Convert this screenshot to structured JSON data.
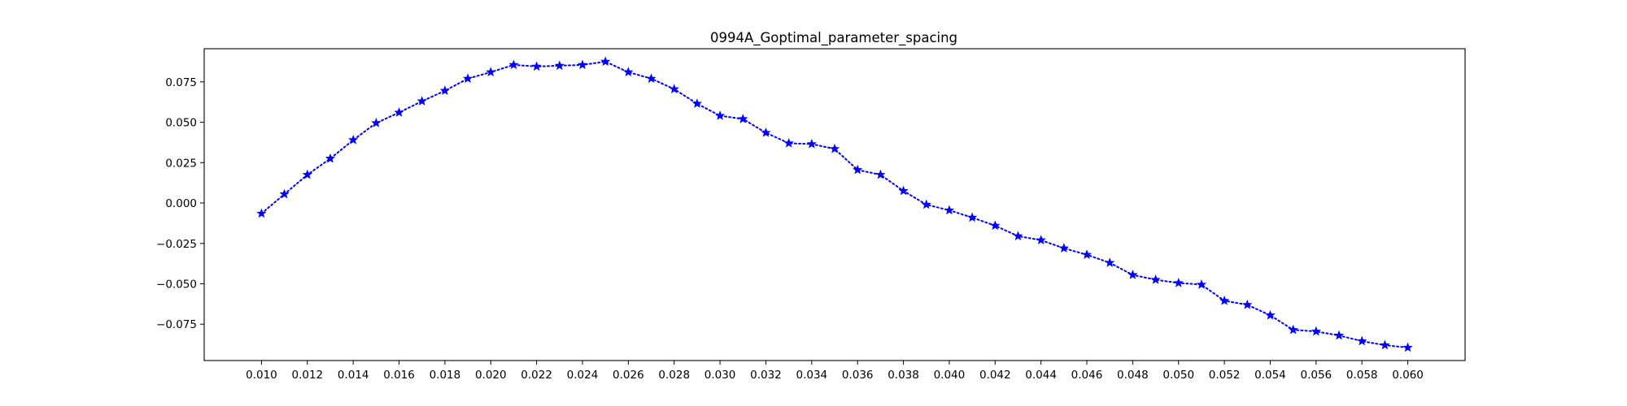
{
  "chart_data": {
    "type": "line",
    "title": "0994A_Goptimal_parameter_spacing",
    "xlabel": "",
    "ylabel": "",
    "xlim": [
      0.0075,
      0.0625
    ],
    "ylim": [
      -0.0975,
      0.0955
    ],
    "x_ticks": [
      0.01,
      0.012,
      0.014,
      0.016,
      0.018,
      0.02,
      0.022,
      0.024,
      0.026,
      0.028,
      0.03,
      0.032,
      0.034,
      0.036,
      0.038,
      0.04,
      0.042,
      0.044,
      0.046,
      0.048,
      0.05,
      0.052,
      0.054,
      0.056,
      0.058,
      0.06
    ],
    "x_tick_labels": [
      "0.010",
      "0.012",
      "0.014",
      "0.016",
      "0.018",
      "0.020",
      "0.022",
      "0.024",
      "0.026",
      "0.028",
      "0.030",
      "0.032",
      "0.034",
      "0.036",
      "0.038",
      "0.040",
      "0.042",
      "0.044",
      "0.046",
      "0.048",
      "0.050",
      "0.052",
      "0.054",
      "0.056",
      "0.058",
      "0.060"
    ],
    "y_ticks": [
      -0.075,
      -0.05,
      -0.025,
      0.0,
      0.025,
      0.05,
      0.075
    ],
    "y_tick_labels": [
      "−0.075",
      "−0.050",
      "−0.025",
      "0.000",
      "0.025",
      "0.050",
      "0.075"
    ],
    "grid": false,
    "series": [
      {
        "color": "#0000ff",
        "line_style": "dotted",
        "marker": "star",
        "x": [
          0.01,
          0.011,
          0.012,
          0.013,
          0.014,
          0.015,
          0.016,
          0.017,
          0.018,
          0.019,
          0.02,
          0.021,
          0.022,
          0.023,
          0.024,
          0.025,
          0.026,
          0.027,
          0.028,
          0.029,
          0.03,
          0.031,
          0.032,
          0.033,
          0.034,
          0.035,
          0.036,
          0.037,
          0.038,
          0.039,
          0.04,
          0.041,
          0.042,
          0.043,
          0.044,
          0.045,
          0.046,
          0.047,
          0.048,
          0.049,
          0.05,
          0.051,
          0.052,
          0.053,
          0.054,
          0.055,
          0.056,
          0.057,
          0.058,
          0.059,
          0.06
        ],
        "y": [
          -0.0065,
          0.0055,
          0.0175,
          0.0275,
          0.039,
          0.0495,
          0.056,
          0.063,
          0.0695,
          0.077,
          0.081,
          0.0855,
          0.0845,
          0.085,
          0.0855,
          0.0875,
          0.081,
          0.077,
          0.0705,
          0.0615,
          0.054,
          0.052,
          0.0435,
          0.037,
          0.0365,
          0.0335,
          0.0205,
          0.0175,
          0.0075,
          -0.001,
          -0.0045,
          -0.009,
          -0.014,
          -0.0205,
          -0.023,
          -0.028,
          -0.032,
          -0.037,
          -0.0445,
          -0.0475,
          -0.0495,
          -0.0505,
          -0.0605,
          -0.063,
          -0.0695,
          -0.0785,
          -0.0795,
          -0.082,
          -0.0855,
          -0.088,
          -0.0895
        ]
      }
    ]
  }
}
